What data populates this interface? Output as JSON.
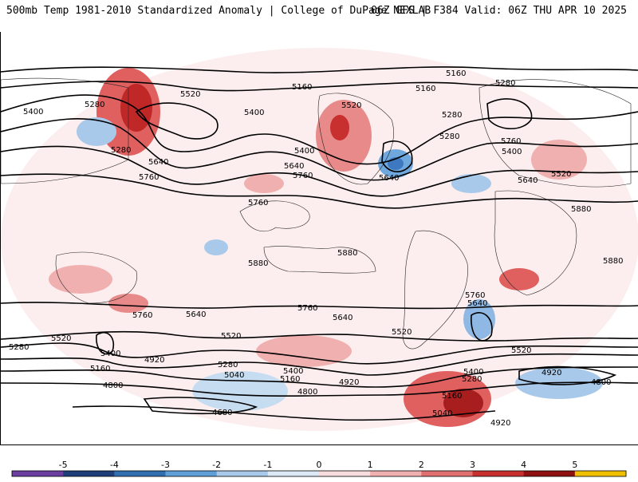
{
  "header": {
    "title_left": "500mb Temp 1981-2010 Standardized Anomaly | College of DuPage NEXLAB",
    "title_right": "06Z GFS | F384 Valid: 06Z THU APR 10 2025"
  },
  "colorbar": {
    "ticks": [
      "-5",
      "-4",
      "-3",
      "-2",
      "-1",
      "0",
      "1",
      "2",
      "3",
      "4",
      "5"
    ],
    "colors": [
      "#6b3fa0",
      "#1f3f7a",
      "#2f6fb0",
      "#5f9fd8",
      "#a9c9ea",
      "#dbe8f5",
      "#f6dcdc",
      "#f0b0b0",
      "#e07070",
      "#c83030",
      "#8e1010",
      "#f0c000"
    ]
  },
  "contour_labels": [
    "5160",
    "5280",
    "5400",
    "5520",
    "5640",
    "5760",
    "5880",
    "5040",
    "4920",
    "4800",
    "4680"
  ],
  "map_labels": [
    {
      "text": "5160",
      "id": "l1"
    },
    {
      "text": "5280",
      "id": "l2"
    },
    {
      "text": "5520",
      "id": "l3"
    },
    {
      "text": "5400",
      "id": "l4"
    },
    {
      "text": "5280",
      "id": "l5"
    },
    {
      "text": "5640",
      "id": "l6"
    },
    {
      "text": "5760",
      "id": "l7"
    },
    {
      "text": "5400",
      "id": "l8"
    },
    {
      "text": "5520",
      "id": "l9"
    },
    {
      "text": "5400",
      "id": "l10"
    },
    {
      "text": "5640",
      "id": "l11"
    },
    {
      "text": "5760",
      "id": "l12"
    },
    {
      "text": "5640",
      "id": "l13"
    },
    {
      "text": "5280",
      "id": "l14"
    },
    {
      "text": "5160",
      "id": "l15"
    },
    {
      "text": "5160",
      "id": "l16"
    },
    {
      "text": "5280",
      "id": "l17"
    },
    {
      "text": "5280",
      "id": "l18"
    },
    {
      "text": "5760",
      "id": "l19"
    },
    {
      "text": "5400",
      "id": "l20"
    },
    {
      "text": "5520",
      "id": "l21"
    },
    {
      "text": "5640",
      "id": "l22"
    },
    {
      "text": "5760",
      "id": "l23"
    },
    {
      "text": "5880",
      "id": "l24"
    },
    {
      "text": "5880",
      "id": "l25"
    },
    {
      "text": "5880",
      "id": "l26"
    },
    {
      "text": "5880",
      "id": "l27"
    },
    {
      "text": "5880",
      "id": "l28"
    },
    {
      "text": "5760",
      "id": "l29"
    },
    {
      "text": "5640",
      "id": "l30"
    },
    {
      "text": "5760",
      "id": "l31"
    },
    {
      "text": "5640",
      "id": "l32"
    },
    {
      "text": "5760",
      "id": "l33"
    },
    {
      "text": "5640",
      "id": "l34"
    },
    {
      "text": "5520",
      "id": "l35"
    },
    {
      "text": "5520",
      "id": "l36"
    },
    {
      "text": "5400",
      "id": "l37"
    },
    {
      "text": "5280",
      "id": "l38"
    },
    {
      "text": "5520",
      "id": "l39"
    },
    {
      "text": "5160",
      "id": "l40"
    },
    {
      "text": "4920",
      "id": "l41"
    },
    {
      "text": "5280",
      "id": "l42"
    },
    {
      "text": "5040",
      "id": "l43"
    },
    {
      "text": "5400",
      "id": "l44"
    },
    {
      "text": "5160",
      "id": "l45"
    },
    {
      "text": "4920",
      "id": "l46"
    },
    {
      "text": "4800",
      "id": "l47"
    },
    {
      "text": "4800",
      "id": "l48"
    },
    {
      "text": "4680",
      "id": "l49"
    },
    {
      "text": "5400",
      "id": "l50"
    },
    {
      "text": "5280",
      "id": "l51"
    },
    {
      "text": "5160",
      "id": "l52"
    },
    {
      "text": "5040",
      "id": "l53"
    },
    {
      "text": "4920",
      "id": "l54"
    },
    {
      "text": "4920",
      "id": "l55"
    },
    {
      "text": "4800",
      "id": "l56"
    },
    {
      "text": "5520",
      "id": "l57"
    },
    {
      "text": "5400",
      "id": "l58"
    }
  ]
}
